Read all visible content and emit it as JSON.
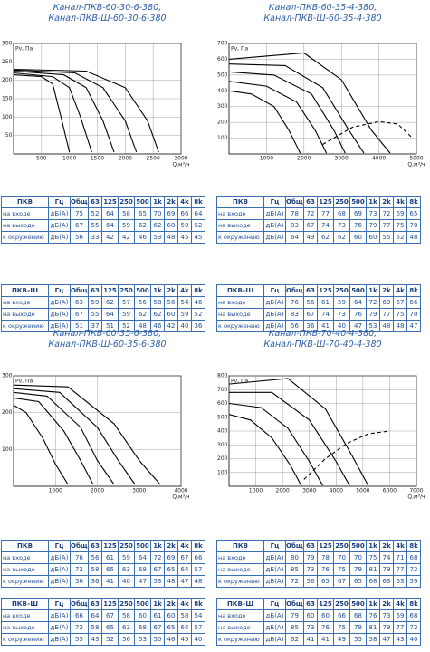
{
  "sections": [
    {
      "title": [
        "Канал-ПКВ-60-30-6-380,",
        "Канал-ПКВ-Ш-60-30-6-380"
      ],
      "chart": {
        "ylabel": "Pv, Па",
        "xlabel": "Q,м³/ч",
        "grid": true,
        "xlim": [
          0,
          3000
        ],
        "ylim": [
          0,
          300
        ],
        "xticks": [
          500,
          1000,
          1500,
          2000,
          2500,
          3000
        ],
        "yticks": [
          50,
          100,
          150,
          200,
          250,
          300
        ],
        "curves": [
          [
            [
              0,
              215
            ],
            [
              500,
              210
            ],
            [
              700,
              190
            ],
            [
              850,
              100
            ],
            [
              1000,
              5
            ]
          ],
          [
            [
              0,
              220
            ],
            [
              700,
              210
            ],
            [
              1000,
              180
            ],
            [
              1200,
              100
            ],
            [
              1400,
              5
            ]
          ],
          [
            [
              0,
              225
            ],
            [
              900,
              215
            ],
            [
              1300,
              180
            ],
            [
              1600,
              90
            ],
            [
              1800,
              5
            ]
          ],
          [
            [
              0,
              228
            ],
            [
              1100,
              220
            ],
            [
              1600,
              180
            ],
            [
              2000,
              90
            ],
            [
              2200,
              5
            ]
          ],
          [
            [
              0,
              230
            ],
            [
              1300,
              225
            ],
            [
              2000,
              180
            ],
            [
              2400,
              90
            ],
            [
              2600,
              5
            ]
          ]
        ],
        "dashed": []
      },
      "tables": [
        {
          "header": [
            "ПКВ",
            "Гц",
            "Общ.",
            "63",
            "125",
            "250",
            "500",
            "1k",
            "2k",
            "4k",
            "8k"
          ],
          "rows": [
            [
              "на входе",
              "дБ(А)",
              75,
              52,
              64,
              58,
              65,
              70,
              69,
              66,
              64
            ],
            [
              "на выходе",
              "дБ(А)",
              67,
              55,
              64,
              59,
              62,
              62,
              60,
              59,
              52
            ],
            [
              "к окружению",
              "дБ(А)",
              56,
              33,
              42,
              42,
              46,
              53,
              48,
              45,
              45
            ]
          ]
        },
        {
          "header": [
            "ПКВ–Ш",
            "Гц",
            "Общ.",
            "63",
            "125",
            "250",
            "500",
            "1k",
            "2k",
            "4k",
            "8k"
          ],
          "rows": [
            [
              "на входе",
              "дБ(А)",
              63,
              59,
              62,
              57,
              56,
              58,
              56,
              54,
              46
            ],
            [
              "на выходе",
              "дБ(А)",
              67,
              55,
              64,
              59,
              62,
              62,
              60,
              59,
              52
            ],
            [
              "к окружению",
              "дБ(А)",
              51,
              37,
              51,
              52,
              48,
              46,
              42,
              40,
              36
            ]
          ]
        }
      ]
    },
    {
      "title": [
        "Канал-ПКВ-60-35-4-380,",
        "Канал-ПКВ-Ш-60-35-4-380"
      ],
      "chart": {
        "ylabel": "Pv, Па",
        "xlabel": "Q,м³/ч",
        "grid": true,
        "xlim": [
          0,
          5000
        ],
        "ylim": [
          0,
          700
        ],
        "xticks": [
          1000,
          2000,
          3000,
          4000,
          5000
        ],
        "yticks": [
          100,
          200,
          300,
          400,
          500,
          600,
          700
        ],
        "curves": [
          [
            [
              0,
              400
            ],
            [
              600,
              380
            ],
            [
              1200,
              300
            ],
            [
              1600,
              150
            ],
            [
              1900,
              5
            ]
          ],
          [
            [
              0,
              460
            ],
            [
              1000,
              430
            ],
            [
              1800,
              330
            ],
            [
              2300,
              150
            ],
            [
              2600,
              5
            ]
          ],
          [
            [
              0,
              520
            ],
            [
              1200,
              500
            ],
            [
              2200,
              380
            ],
            [
              2800,
              150
            ],
            [
              3100,
              5
            ]
          ],
          [
            [
              0,
              570
            ],
            [
              1500,
              560
            ],
            [
              2500,
              420
            ],
            [
              3200,
              150
            ],
            [
              3600,
              5
            ]
          ],
          [
            [
              0,
              600
            ],
            [
              2000,
              640
            ],
            [
              3000,
              470
            ],
            [
              3800,
              150
            ],
            [
              4300,
              5
            ]
          ]
        ],
        "dashed": [
          [
            [
              2500,
              60
            ],
            [
              3300,
              170
            ],
            [
              4000,
              205
            ],
            [
              4500,
              190
            ],
            [
              4900,
              100
            ]
          ]
        ]
      },
      "tables": [
        {
          "header": [
            "ПКВ",
            "Гц",
            "Общ.",
            "63",
            "125",
            "250",
            "500",
            "1k",
            "2k",
            "4k",
            "8k"
          ],
          "rows": [
            [
              "на входе",
              "дБ(А)",
              78,
              72,
              77,
              68,
              69,
              73,
              72,
              69,
              65
            ],
            [
              "на выходе",
              "дБ(А)",
              83,
              67,
              74,
              73,
              76,
              79,
              77,
              75,
              70
            ],
            [
              "к окружению",
              "дБ(А)",
              64,
              49,
              62,
              62,
              60,
              60,
              55,
              52,
              48
            ]
          ]
        },
        {
          "header": [
            "ПКВ–Ш",
            "Гц",
            "Общ.",
            "63",
            "125",
            "250",
            "500",
            "1k",
            "2k",
            "4k",
            "8k"
          ],
          "rows": [
            [
              "на входе",
              "дБ(А)",
              76,
              56,
              61,
              59,
              64,
              72,
              69,
              67,
              66
            ],
            [
              "на выходе",
              "дБ(А)",
              83,
              67,
              74,
              73,
              76,
              79,
              77,
              75,
              70
            ],
            [
              "к окружению",
              "дБ(А)",
              56,
              36,
              41,
              40,
              47,
              53,
              48,
              48,
              47
            ]
          ]
        }
      ]
    },
    {
      "title": [
        "Канал-ПКВ-60-35-6-380,",
        "Канал-ПКВ-Ш-60-35-6-380"
      ],
      "chart": {
        "ylabel": "Pv, Па",
        "xlabel": "Q,м³/ч",
        "grid": true,
        "xlim": [
          0,
          4000
        ],
        "ylim": [
          0,
          300
        ],
        "xticks": [
          1000,
          2000,
          3000,
          4000
        ],
        "yticks": [
          100,
          200,
          300
        ],
        "curves": [
          [
            [
              0,
              220
            ],
            [
              300,
              200
            ],
            [
              700,
              130
            ],
            [
              1000,
              60
            ],
            [
              1300,
              5
            ]
          ],
          [
            [
              0,
              240
            ],
            [
              600,
              230
            ],
            [
              1200,
              150
            ],
            [
              1600,
              70
            ],
            [
              1900,
              5
            ]
          ],
          [
            [
              0,
              255
            ],
            [
              800,
              245
            ],
            [
              1600,
              160
            ],
            [
              2000,
              70
            ],
            [
              2400,
              5
            ]
          ],
          [
            [
              0,
              265
            ],
            [
              1100,
              255
            ],
            [
              2000,
              160
            ],
            [
              2500,
              70
            ],
            [
              2900,
              5
            ]
          ],
          [
            [
              0,
              275
            ],
            [
              1300,
              270
            ],
            [
              2400,
              170
            ],
            [
              3000,
              70
            ],
            [
              3500,
              5
            ]
          ]
        ],
        "dashed": []
      },
      "tables": [
        {
          "header": [
            "ПКВ",
            "Гц",
            "Общ.",
            "63",
            "125",
            "250",
            "500",
            "1k",
            "2k",
            "4k",
            "8k"
          ],
          "rows": [
            [
              "на входе",
              "дБ(А)",
              76,
              56,
              61,
              59,
              64,
              72,
              69,
              67,
              66
            ],
            [
              "на выходе",
              "дБ(А)",
              72,
              58,
              65,
              63,
              68,
              67,
              65,
              64,
              57
            ],
            [
              "к окружению",
              "дБ(А)",
              56,
              36,
              41,
              40,
              47,
              53,
              48,
              47,
              48
            ]
          ]
        },
        {
          "header": [
            "ПКВ–Ш",
            "Гц",
            "Общ.",
            "63",
            "125",
            "250",
            "500",
            "1k",
            "2k",
            "4k",
            "8k"
          ],
          "rows": [
            [
              "на входе",
              "дБ(А)",
              66,
              64,
              67,
              58,
              60,
              61,
              60,
              58,
              54
            ],
            [
              "на выходе",
              "дБ(А)",
              72,
              58,
              65,
              63,
              68,
              67,
              65,
              64,
              57
            ],
            [
              "к окружению",
              "дБ(А)",
              55,
              43,
              52,
              56,
              53,
              50,
              46,
              45,
              40
            ]
          ]
        }
      ]
    },
    {
      "title": [
        "Канал-ПКВ-70-40-4-380,",
        "Канал-ПКВ-Ш-70-40-4-380"
      ],
      "chart": {
        "ylabel": "Pv, Па",
        "xlabel": "Q,м³/ч",
        "grid": true,
        "xlim": [
          0,
          7000
        ],
        "ylim": [
          0,
          800
        ],
        "xticks": [
          1000,
          2000,
          3000,
          4000,
          5000,
          6000,
          7000
        ],
        "yticks": [
          100,
          200,
          300,
          400,
          500,
          600,
          700,
          800
        ],
        "curves": [
          [
            [
              0,
              520
            ],
            [
              800,
              480
            ],
            [
              1600,
              350
            ],
            [
              2300,
              150
            ],
            [
              2700,
              5
            ]
          ],
          [
            [
              0,
              600
            ],
            [
              1200,
              570
            ],
            [
              2200,
              420
            ],
            [
              3000,
              180
            ],
            [
              3500,
              5
            ]
          ],
          [
            [
              0,
              680
            ],
            [
              1600,
              680
            ],
            [
              3000,
              480
            ],
            [
              4000,
              180
            ],
            [
              4500,
              5
            ]
          ],
          [
            [
              0,
              740
            ],
            [
              2200,
              780
            ],
            [
              3600,
              560
            ],
            [
              4600,
              220
            ],
            [
              5200,
              5
            ]
          ]
        ],
        "dashed": [
          [
            [
              2800,
              50
            ],
            [
              3600,
              200
            ],
            [
              4400,
              310
            ],
            [
              5200,
              380
            ],
            [
              6000,
              400
            ]
          ]
        ]
      },
      "tables": [
        {
          "header": [
            "ПКВ",
            "Гц",
            "Общ.",
            "63",
            "125",
            "250",
            "500",
            "1k",
            "2k",
            "4k",
            "8k"
          ],
          "rows": [
            [
              "на входе",
              "дБ(А)",
              80,
              79,
              78,
              70,
              70,
              75,
              74,
              71,
              68
            ],
            [
              "на выходе",
              "дБ(А)",
              85,
              73,
              76,
              75,
              79,
              81,
              79,
              77,
              72
            ],
            [
              "к окружению",
              "дБ(А)",
              72,
              56,
              65,
              67,
              65,
              68,
              63,
              63,
              59
            ]
          ]
        },
        {
          "header": [
            "ПКВ–Ш",
            "Гц",
            "Общ.",
            "63",
            "125",
            "250",
            "500",
            "1k",
            "2k",
            "4k",
            "8k"
          ],
          "rows": [
            [
              "на входе",
              "дБ(А)",
              79,
              60,
              60,
              66,
              68,
              76,
              73,
              69,
              68
            ],
            [
              "на выходе",
              "дБ(А)",
              85,
              73,
              76,
              75,
              79,
              81,
              79,
              77,
              72
            ],
            [
              "к окружению",
              "дБ(А)",
              62,
              41,
              41,
              49,
              55,
              58,
              47,
              43,
              40
            ]
          ]
        }
      ]
    }
  ]
}
